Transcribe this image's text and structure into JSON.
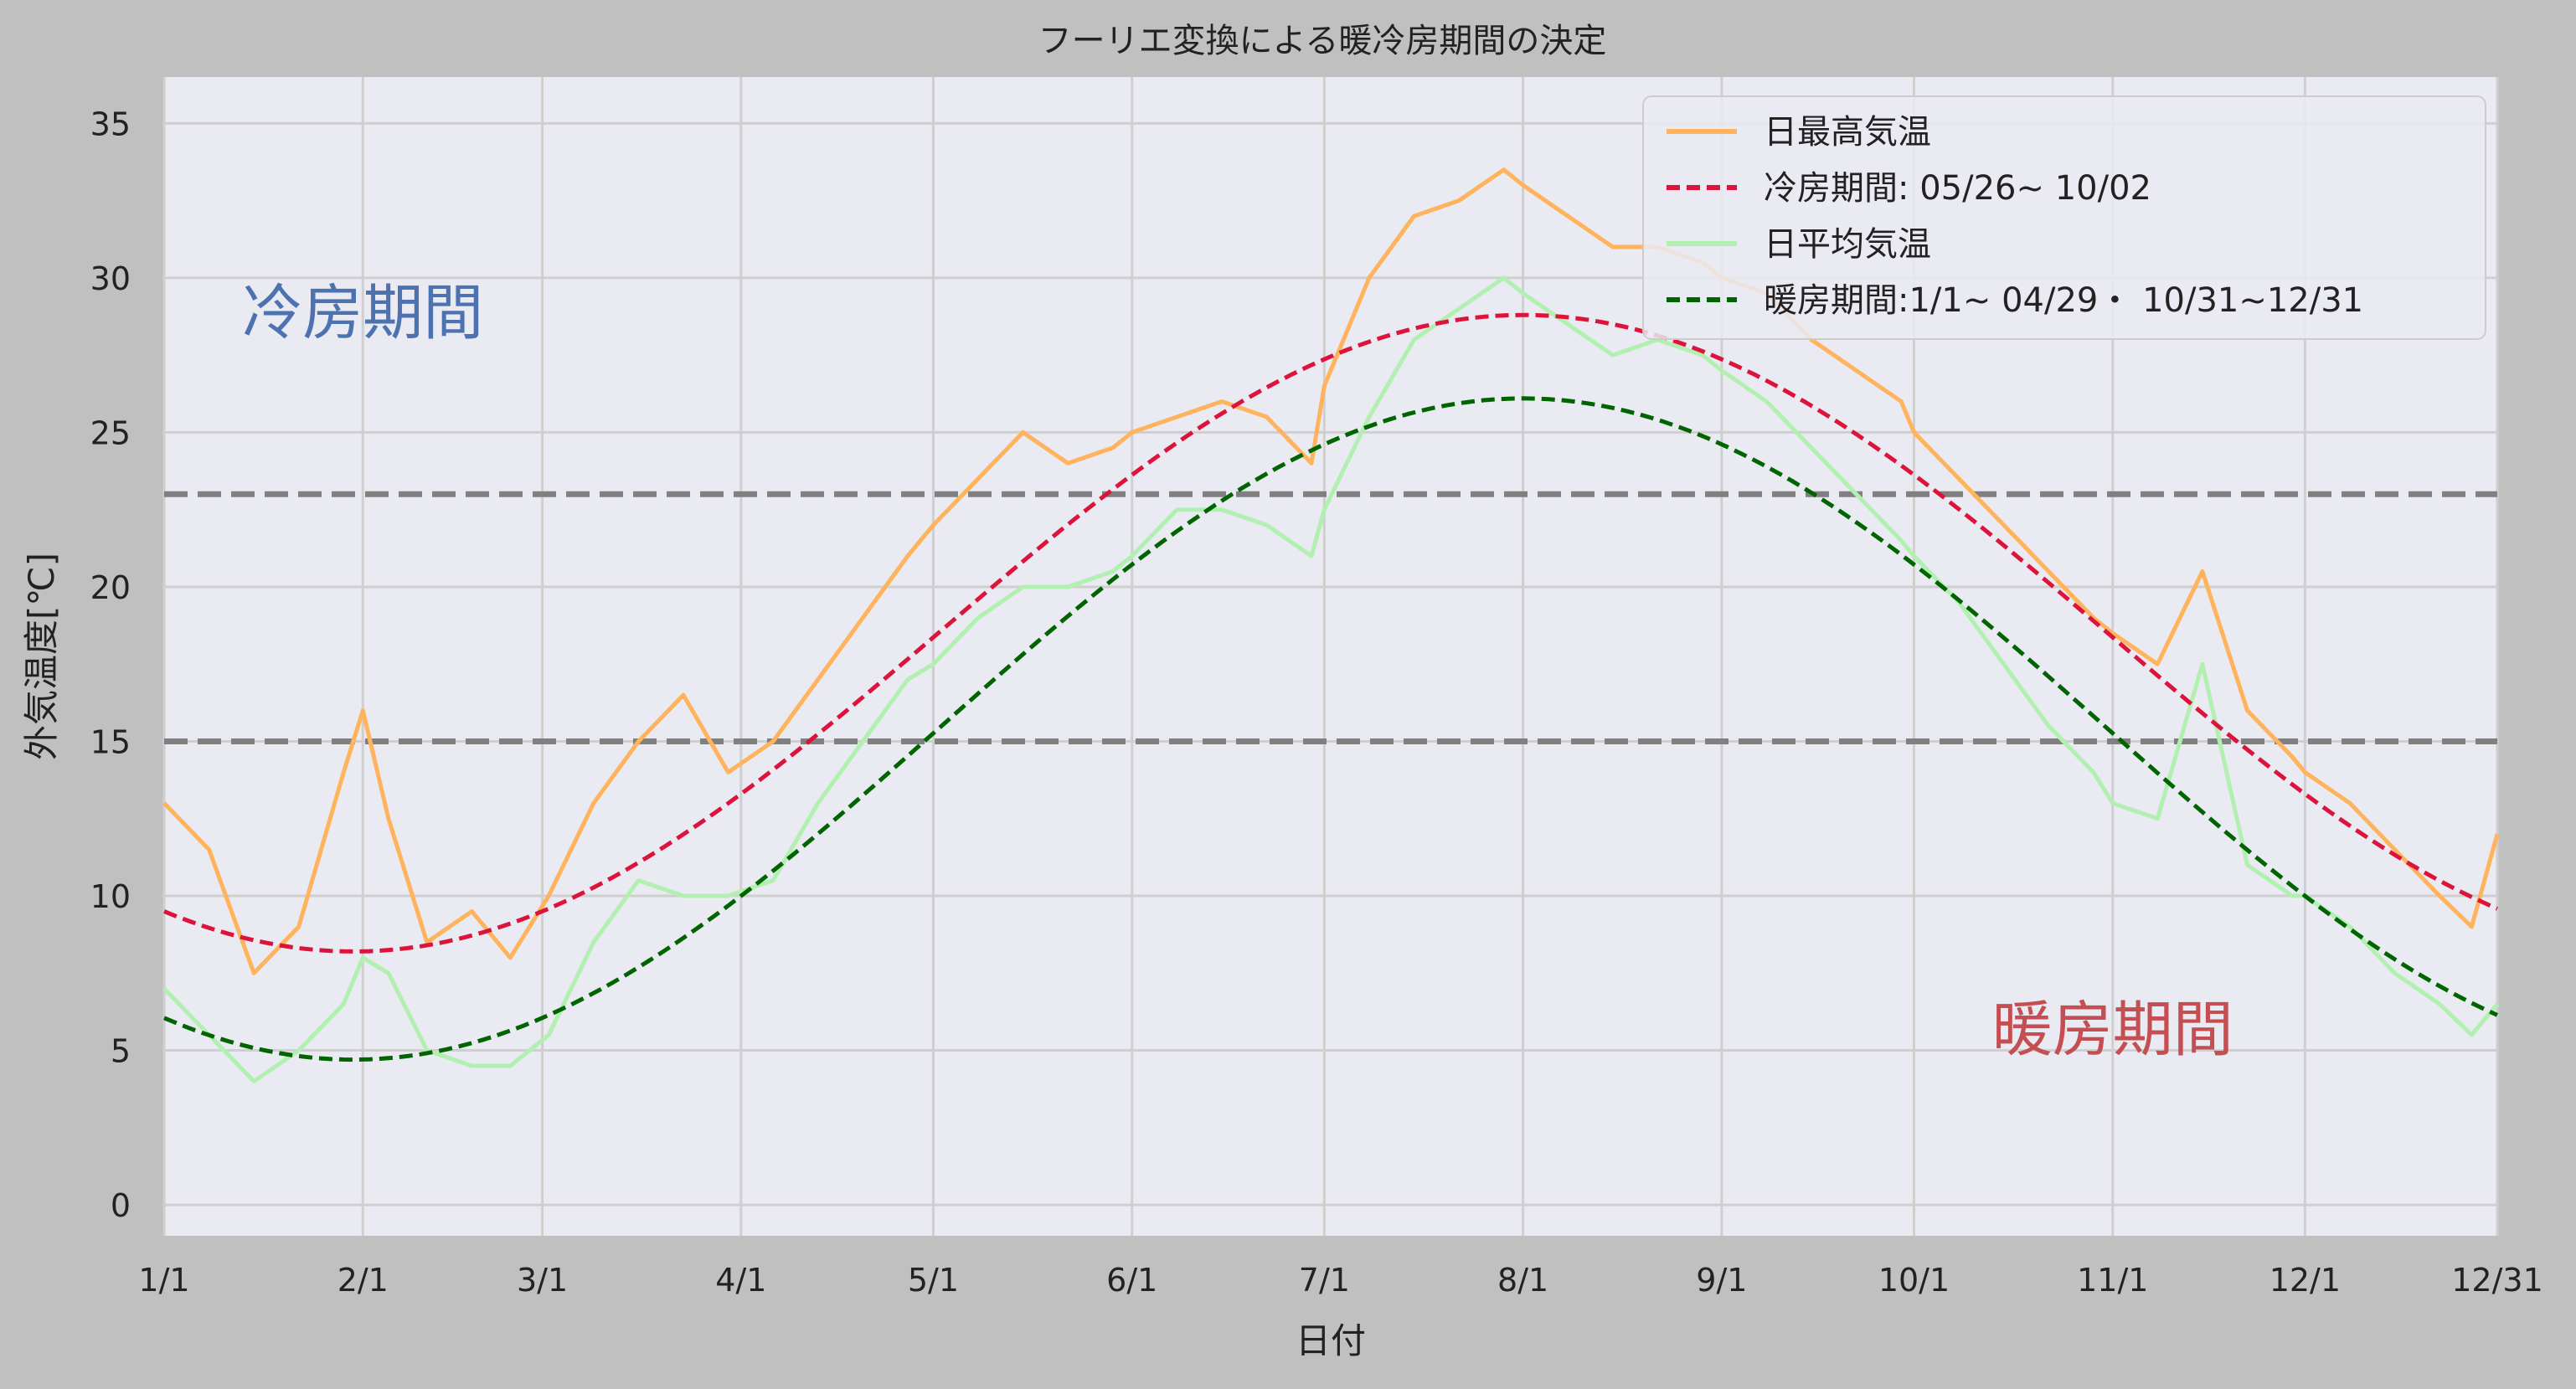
{
  "chart_data": {
    "type": "line",
    "title": "フーリエ変換による暖冷房期間の決定",
    "xlabel": "日付",
    "ylabel": "外気温度[℃]",
    "ylim": [
      -1,
      36.5
    ],
    "y_ticks": [
      0,
      5,
      10,
      15,
      20,
      25,
      30,
      35
    ],
    "x_range_day": [
      1,
      365
    ],
    "x_ticks": [
      {
        "label": "1/1",
        "day": 1
      },
      {
        "label": "2/1",
        "day": 32
      },
      {
        "label": "3/1",
        "day": 60
      },
      {
        "label": "4/1",
        "day": 91
      },
      {
        "label": "5/1",
        "day": 121
      },
      {
        "label": "6/1",
        "day": 152
      },
      {
        "label": "7/1",
        "day": 182
      },
      {
        "label": "8/1",
        "day": 213
      },
      {
        "label": "9/1",
        "day": 244
      },
      {
        "label": "10/1",
        "day": 274
      },
      {
        "label": "11/1",
        "day": 305
      },
      {
        "label": "12/1",
        "day": 335
      },
      {
        "label": "12/31",
        "day": 365
      }
    ],
    "grid": true,
    "legend_position": "top-right",
    "legend": [
      {
        "label": "日最高気温",
        "color": "#ffb35c",
        "style": "solid"
      },
      {
        "label": "冷房期間: 05/26~ 10/02",
        "color": "#dc143c",
        "style": "dashed"
      },
      {
        "label": "日平均気温",
        "color": "#b2f0b2",
        "style": "solid"
      },
      {
        "label": "暖房期間:1/1~ 04/29・ 10/31~12/31",
        "color": "#006400",
        "style": "dashed"
      }
    ],
    "thresholds": [
      {
        "y": 23,
        "color": "#808080"
      },
      {
        "y": 15,
        "color": "#808080"
      }
    ],
    "annotations": [
      {
        "text": "冷房期間",
        "color": "#4c72b0",
        "day": 32,
        "y": 28.2
      },
      {
        "text": "暖房期間",
        "color": "#c44e52",
        "day": 305,
        "y": 5
      }
    ],
    "series": [
      {
        "name": "日最高気温",
        "color": "#ffb35c",
        "points": [
          [
            1,
            13
          ],
          [
            8,
            11.5
          ],
          [
            15,
            7.5
          ],
          [
            22,
            9
          ],
          [
            29,
            14
          ],
          [
            32,
            16
          ],
          [
            36,
            12.5
          ],
          [
            42,
            8.5
          ],
          [
            49,
            9.5
          ],
          [
            55,
            8
          ],
          [
            61,
            10
          ],
          [
            68,
            13
          ],
          [
            75,
            15
          ],
          [
            82,
            16.5
          ],
          [
            89,
            14
          ],
          [
            96,
            15
          ],
          [
            103,
            17
          ],
          [
            110,
            19
          ],
          [
            117,
            21
          ],
          [
            121,
            22
          ],
          [
            128,
            23.5
          ],
          [
            135,
            25
          ],
          [
            142,
            24
          ],
          [
            149,
            24.5
          ],
          [
            152,
            25
          ],
          [
            159,
            25.5
          ],
          [
            166,
            26
          ],
          [
            173,
            25.5
          ],
          [
            180,
            24
          ],
          [
            182,
            26.5
          ],
          [
            189,
            30
          ],
          [
            196,
            32
          ],
          [
            203,
            32.5
          ],
          [
            210,
            33.5
          ],
          [
            213,
            33
          ],
          [
            220,
            32
          ],
          [
            227,
            31
          ],
          [
            234,
            31
          ],
          [
            241,
            30.5
          ],
          [
            244,
            30
          ],
          [
            251,
            29.5
          ],
          [
            258,
            28
          ],
          [
            265,
            27
          ],
          [
            272,
            26
          ],
          [
            274,
            25
          ],
          [
            281,
            23.5
          ],
          [
            288,
            22
          ],
          [
            295,
            20.5
          ],
          [
            302,
            19
          ],
          [
            305,
            18.5
          ],
          [
            312,
            17.5
          ],
          [
            319,
            20.5
          ],
          [
            326,
            16
          ],
          [
            333,
            14.5
          ],
          [
            335,
            14
          ],
          [
            342,
            13
          ],
          [
            349,
            11.5
          ],
          [
            356,
            10
          ],
          [
            361,
            9
          ],
          [
            365,
            12
          ]
        ]
      },
      {
        "name": "日平均気温",
        "color": "#b2f0b2",
        "points": [
          [
            1,
            7
          ],
          [
            8,
            5.5
          ],
          [
            15,
            4
          ],
          [
            22,
            5
          ],
          [
            29,
            6.5
          ],
          [
            32,
            8
          ],
          [
            36,
            7.5
          ],
          [
            42,
            5
          ],
          [
            49,
            4.5
          ],
          [
            55,
            4.5
          ],
          [
            61,
            5.5
          ],
          [
            68,
            8.5
          ],
          [
            75,
            10.5
          ],
          [
            82,
            10
          ],
          [
            89,
            10
          ],
          [
            96,
            10.5
          ],
          [
            103,
            13
          ],
          [
            110,
            15
          ],
          [
            117,
            17
          ],
          [
            121,
            17.5
          ],
          [
            128,
            19
          ],
          [
            135,
            20
          ],
          [
            142,
            20
          ],
          [
            149,
            20.5
          ],
          [
            152,
            21
          ],
          [
            159,
            22.5
          ],
          [
            166,
            22.5
          ],
          [
            173,
            22
          ],
          [
            180,
            21
          ],
          [
            182,
            22.5
          ],
          [
            189,
            25.5
          ],
          [
            196,
            28
          ],
          [
            203,
            29
          ],
          [
            210,
            30
          ],
          [
            213,
            29.5
          ],
          [
            220,
            28.5
          ],
          [
            227,
            27.5
          ],
          [
            234,
            28
          ],
          [
            241,
            27.5
          ],
          [
            244,
            27
          ],
          [
            251,
            26
          ],
          [
            258,
            24.5
          ],
          [
            265,
            23
          ],
          [
            272,
            21.5
          ],
          [
            274,
            21
          ],
          [
            281,
            19.5
          ],
          [
            288,
            17.5
          ],
          [
            295,
            15.5
          ],
          [
            302,
            14
          ],
          [
            305,
            13
          ],
          [
            312,
            12.5
          ],
          [
            319,
            17.5
          ],
          [
            326,
            11
          ],
          [
            333,
            10
          ],
          [
            335,
            10
          ],
          [
            342,
            9
          ],
          [
            349,
            7.5
          ],
          [
            356,
            6.5
          ],
          [
            361,
            5.5
          ],
          [
            365,
            6.5
          ]
        ]
      },
      {
        "name": "冷房期間: 05/26~ 10/02",
        "color": "#dc143c",
        "dashed": true,
        "fit": {
          "mean": 18.5,
          "amplitude": 10.3,
          "peak_day": 213
        }
      },
      {
        "name": "暖房期間:1/1~ 04/29・ 10/31~12/31",
        "color": "#006400",
        "dashed": true,
        "fit": {
          "mean": 15.4,
          "amplitude": 10.7,
          "peak_day": 213
        }
      }
    ]
  }
}
